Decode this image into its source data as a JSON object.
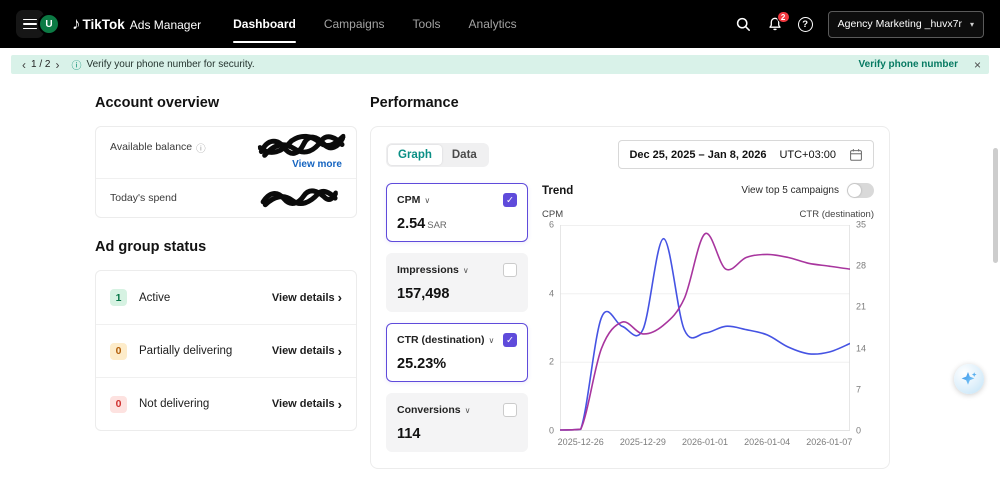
{
  "icons": {
    "music_note": "♪",
    "chevron_left": "‹",
    "chevron_right": "›",
    "chevron_down": "∨",
    "caret_down": "▾",
    "close": "×",
    "check": "✓",
    "info": "ⓘ",
    "question": "?"
  },
  "colors": {
    "accent_teal": "#0a8f85",
    "selected_purple": "#5F4BDB",
    "notice_bg": "#d9f2e9"
  },
  "header": {
    "brand_bold": "TikTok",
    "brand_rest": "Ads Manager",
    "avatar_initial": "U",
    "nav": [
      {
        "label": "Dashboard"
      },
      {
        "label": "Campaigns"
      },
      {
        "label": "Tools"
      },
      {
        "label": "Analytics"
      }
    ],
    "notification_badge": "2",
    "account_name": "Agency Marketing _huvx7r"
  },
  "notice": {
    "page": "1 / 2",
    "message": "Verify your phone number for security.",
    "action": "Verify phone number"
  },
  "account_overview": {
    "title": "Account overview",
    "available_balance_label": "Available balance",
    "view_more": "View more",
    "todays_spend_label": "Today's spend"
  },
  "ad_group_status": {
    "title": "Ad group status",
    "rows": [
      {
        "count": "1",
        "label": "Active",
        "action": "View details"
      },
      {
        "count": "0",
        "label": "Partially delivering",
        "action": "View details"
      },
      {
        "count": "0",
        "label": "Not delivering",
        "action": "View details"
      }
    ]
  },
  "performance": {
    "title": "Performance",
    "tab_graph": "Graph",
    "tab_data": "Data",
    "date_range": "Dec 25, 2025 – Jan 8, 2026",
    "timezone": "UTC+03:00",
    "trend_label": "Trend",
    "top5_label": "View top 5 campaigns",
    "metrics": [
      {
        "name": "CPM",
        "value": "2.54",
        "unit": "SAR",
        "selected": true
      },
      {
        "name": "Impressions",
        "value": "157,498",
        "selected": false
      },
      {
        "name": "CTR (destination)",
        "value": "25.23%",
        "selected": true
      },
      {
        "name": "Conversions",
        "value": "114",
        "selected": false
      }
    ]
  },
  "chart_data": {
    "type": "line",
    "x": [
      "2025-12-25",
      "2025-12-26",
      "2025-12-27",
      "2025-12-28",
      "2025-12-29",
      "2025-12-30",
      "2025-12-31",
      "2026-01-01",
      "2026-01-02",
      "2026-01-03",
      "2026-01-04",
      "2026-01-05",
      "2026-01-06",
      "2026-01-07",
      "2026-01-08"
    ],
    "x_ticks": [
      "2025-12-26",
      "2025-12-29",
      "2026-01-01",
      "2026-01-04",
      "2026-01-07"
    ],
    "left_axis": {
      "label": "CPM",
      "ticks": [
        0,
        2,
        4,
        6
      ],
      "range": [
        0,
        6
      ]
    },
    "right_axis": {
      "label": "CTR (destination)",
      "ticks": [
        0,
        7,
        14,
        21,
        28,
        35
      ],
      "range": [
        0,
        35
      ]
    },
    "grid": true,
    "series": [
      {
        "name": "CPM",
        "axis": "left",
        "color": "#4553e3",
        "values": [
          0,
          0.05,
          3.3,
          3.05,
          2.95,
          5.6,
          2.95,
          2.85,
          3.05,
          2.95,
          2.8,
          2.45,
          2.25,
          2.3,
          2.55
        ]
      },
      {
        "name": "CTR (destination)",
        "axis": "right",
        "color": "#a8359e",
        "values": [
          0,
          0.3,
          14,
          18.5,
          16.5,
          18,
          22.5,
          33.5,
          27.5,
          29.5,
          30,
          29.5,
          28.5,
          28,
          27.5
        ]
      }
    ]
  }
}
